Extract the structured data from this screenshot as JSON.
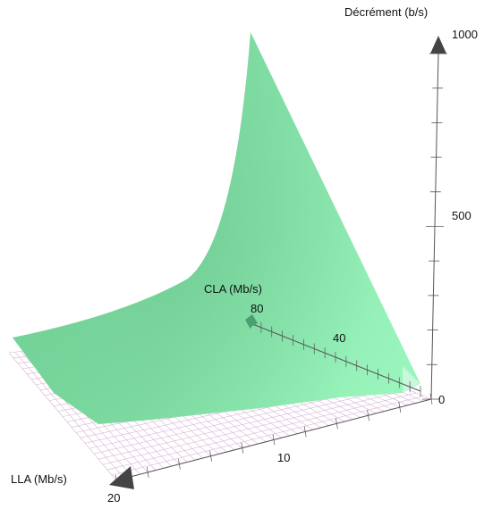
{
  "chart_data": {
    "type": "surface",
    "axes": {
      "z": {
        "label": "Décrément (b/s)",
        "range": [
          0,
          1000
        ],
        "tick_labels": [
          "0",
          "500",
          "1000"
        ]
      },
      "y": {
        "label": "CLA (Mb/s)",
        "range": [
          0,
          80
        ],
        "tick_labels": [
          "40",
          "80"
        ]
      },
      "x": {
        "label": "LLA (Mb/s)",
        "range": [
          0,
          20
        ],
        "tick_labels": [
          "10",
          "20"
        ]
      }
    },
    "grid": "floor",
    "surface_color": "#7fdca2",
    "floor_grid_color": "#d9b6d9",
    "axis_color": "#555555",
    "arrow_color": "#444444"
  }
}
